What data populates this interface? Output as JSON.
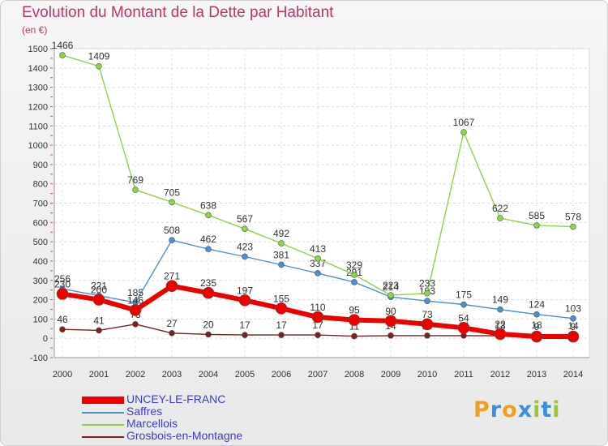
{
  "chart_data": {
    "type": "line",
    "title": "Evolution du Montant de la Dette par Habitant",
    "subtitle": "(en €)",
    "xlabel": "",
    "ylabel": "",
    "ylim": [
      -100,
      1500
    ],
    "yticks": [
      -100,
      0,
      100,
      200,
      300,
      400,
      500,
      600,
      700,
      800,
      900,
      1000,
      1100,
      1200,
      1300,
      1400,
      1500
    ],
    "grid": true,
    "legend_position": "bottom-left",
    "categories": [
      "2000",
      "2001",
      "2002",
      "2003",
      "2004",
      "2005",
      "2006",
      "2007",
      "2008",
      "2009",
      "2010",
      "2011",
      "2012",
      "2013",
      "2014"
    ],
    "series": [
      {
        "name": "Saffres",
        "color": "#4a90d0",
        "values": [
          256,
          221,
          185,
          508,
          462,
          423,
          381,
          337,
          291,
          214,
          193,
          175,
          149,
          124,
          103
        ]
      },
      {
        "name": "Marcellois",
        "color": "#8ed44a",
        "values": [
          1466,
          1409,
          769,
          705,
          638,
          567,
          492,
          413,
          329,
          223,
          233,
          1067,
          622,
          585,
          578
        ]
      },
      {
        "name": "Grosbois-en-Montagne",
        "color": "#7b1f1f",
        "values": [
          46,
          41,
          73,
          27,
          20,
          17,
          17,
          17,
          11,
          14,
          14,
          14,
          13,
          18,
          14
        ]
      },
      {
        "name": "UNCEY-LE-FRANC",
        "color": "#ee0000",
        "values": [
          230,
          200,
          146,
          271,
          235,
          197,
          155,
          110,
          95,
          90,
          73,
          54,
          22,
          9,
          9
        ]
      }
    ]
  },
  "logo": {
    "text": "Proxiti"
  }
}
